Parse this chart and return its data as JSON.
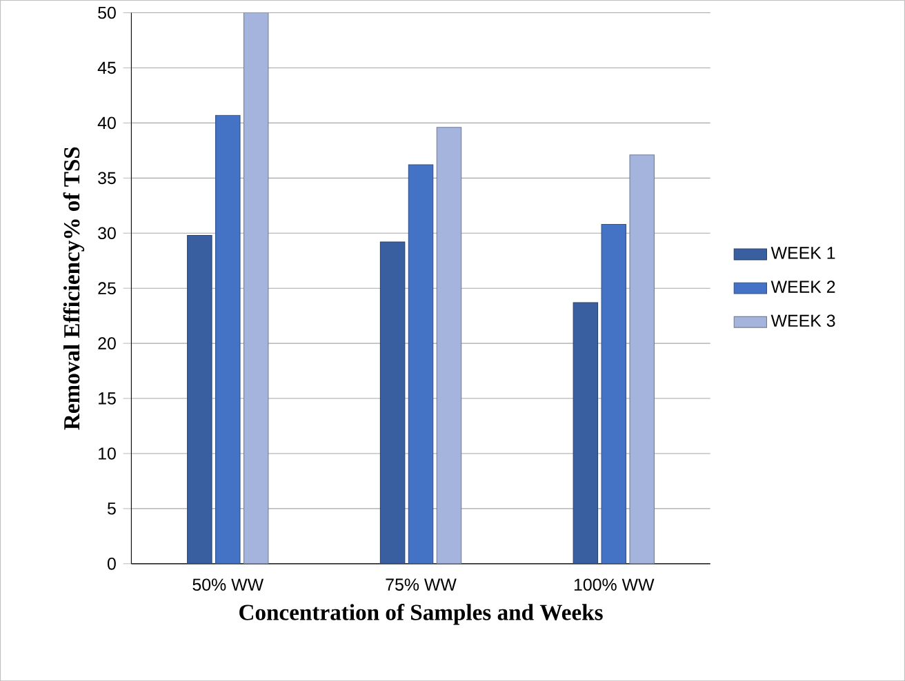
{
  "chart_data": {
    "type": "bar",
    "xlabel": "Concentration of Samples and Weeks",
    "ylabel": "Removal Efficiency% of TSS",
    "categories": [
      "50% WW",
      "75% WW",
      "100% WW"
    ],
    "series": [
      {
        "name": "WEEK 1",
        "color": "#3a5fa0",
        "values": [
          29.8,
          29.2,
          23.7
        ]
      },
      {
        "name": "WEEK 2",
        "color": "#4472c4",
        "values": [
          40.7,
          36.2,
          30.8
        ]
      },
      {
        "name": "WEEK 3",
        "color": "#a5b4dc",
        "values": [
          50,
          39.6,
          37.1
        ]
      }
    ],
    "ylim": [
      0,
      50
    ],
    "yticks": [
      0,
      5,
      10,
      15,
      20,
      25,
      30,
      35,
      40,
      45,
      50
    ],
    "grid": "y",
    "legend": "right"
  }
}
